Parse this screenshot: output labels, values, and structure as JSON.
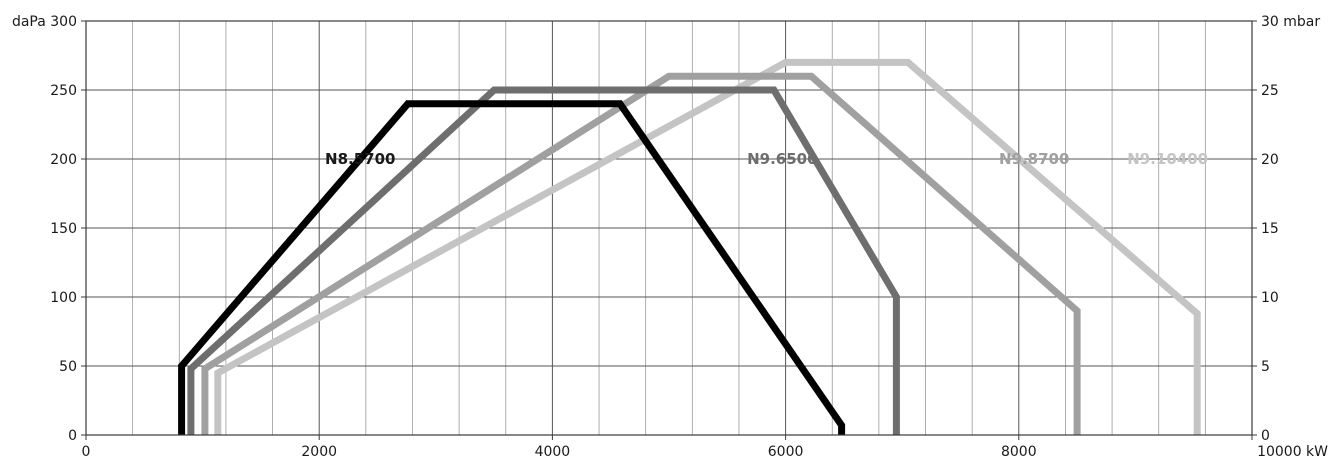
{
  "chart_data": {
    "type": "line",
    "xlim": [
      0,
      10000
    ],
    "ylim": [
      0,
      300
    ],
    "y2lim": [
      0,
      30
    ],
    "x_ticks": [
      {
        "value": 0,
        "label": "0"
      },
      {
        "value": 2000,
        "label": "2000"
      },
      {
        "value": 4000,
        "label": "4000"
      },
      {
        "value": 6000,
        "label": "6000"
      },
      {
        "value": 8000,
        "label": "8000"
      },
      {
        "value": 10000,
        "label": "10000 kW"
      }
    ],
    "y_ticks": [
      {
        "value": 0,
        "label": "0"
      },
      {
        "value": 50,
        "label": "50"
      },
      {
        "value": 100,
        "label": "100"
      },
      {
        "value": 150,
        "label": "150"
      },
      {
        "value": 200,
        "label": "200"
      },
      {
        "value": 250,
        "label": "250"
      },
      {
        "value": 300,
        "label": "daPa 300"
      }
    ],
    "y2_ticks": [
      {
        "value": 0,
        "label": "0"
      },
      {
        "value": 5,
        "label": "5"
      },
      {
        "value": 10,
        "label": "10"
      },
      {
        "value": 15,
        "label": "15"
      },
      {
        "value": 20,
        "label": "20"
      },
      {
        "value": 25,
        "label": "25"
      },
      {
        "value": 30,
        "label": "30 mbar"
      }
    ],
    "grid": {
      "x_minor_step": 400,
      "x_major_step": 2000,
      "y_step": 50
    },
    "series": [
      {
        "name": "N9.10400",
        "color": "#c4c4c4",
        "points": [
          [
            1130,
            0
          ],
          [
            1130,
            45
          ],
          [
            6000,
            270
          ],
          [
            7050,
            270
          ],
          [
            9530,
            88
          ],
          [
            9530,
            0
          ]
        ]
      },
      {
        "name": "N9.8700",
        "color": "#a0a0a0",
        "points": [
          [
            1020,
            0
          ],
          [
            1020,
            48
          ],
          [
            5000,
            260
          ],
          [
            6220,
            260
          ],
          [
            8500,
            90
          ],
          [
            8500,
            0
          ]
        ]
      },
      {
        "name": "N9.6500",
        "color": "#6e6e6e",
        "points": [
          [
            900,
            0
          ],
          [
            900,
            48
          ],
          [
            3500,
            250
          ],
          [
            5900,
            250
          ],
          [
            6950,
            100
          ],
          [
            6950,
            0
          ]
        ]
      },
      {
        "name": "N8.5700",
        "color": "#000000",
        "points": [
          [
            820,
            0
          ],
          [
            820,
            50
          ],
          [
            2760,
            240
          ],
          [
            4580,
            240
          ],
          [
            6480,
            7
          ],
          [
            6480,
            0
          ]
        ]
      }
    ],
    "labels": [
      {
        "text": "N8.5700",
        "x": 2050,
        "y": 200,
        "color": "#1a1a1a"
      },
      {
        "text": "N9.6500",
        "x": 5670,
        "y": 200,
        "color": "#6e6e6e"
      },
      {
        "text": "N9.8700",
        "x": 7830,
        "y": 200,
        "color": "#a0a0a0"
      },
      {
        "text": "N9.10400",
        "x": 8930,
        "y": 200,
        "color": "#c4c4c4"
      }
    ]
  }
}
